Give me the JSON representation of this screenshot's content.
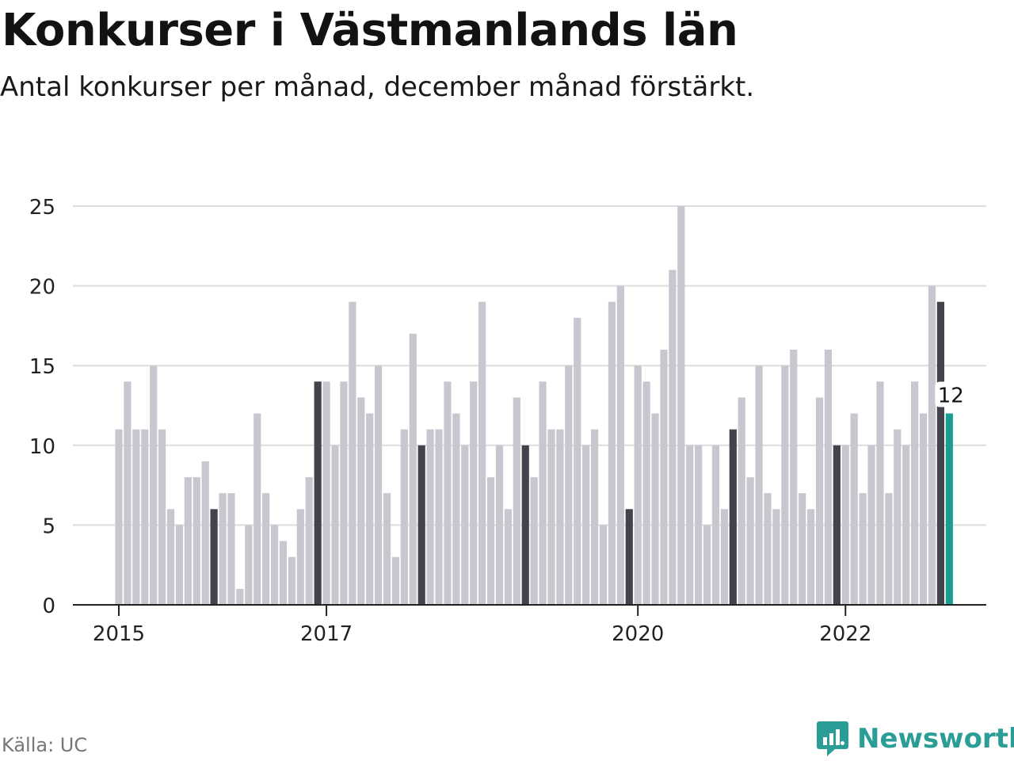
{
  "header": {
    "title": "Konkurser i Västmanlands län",
    "subtitle": "Antal konkurser per månad, december månad förstärkt."
  },
  "footer": {
    "source": "Källa: UC",
    "brand": "Newsworthy"
  },
  "colors": {
    "bar": "#c7c7d0",
    "december": "#43434d",
    "latest": "#1a9e94",
    "grid": "#dddddd",
    "axis": "#222222",
    "brand": "#2a9d96"
  },
  "chart_data": {
    "type": "bar",
    "title": "Konkurser i Västmanlands län",
    "xlabel": "",
    "ylabel": "",
    "ylim": [
      0,
      25
    ],
    "yticks": [
      0,
      5,
      10,
      15,
      20,
      25
    ],
    "grid": true,
    "start": "2015-01",
    "xtick_labels": [
      {
        "label": "2015",
        "index": 0
      },
      {
        "label": "2017",
        "index": 24
      },
      {
        "label": "2020",
        "index": 60
      },
      {
        "label": "2022",
        "index": 84
      }
    ],
    "values": [
      11,
      14,
      11,
      11,
      15,
      11,
      6,
      5,
      8,
      8,
      9,
      6,
      7,
      7,
      1,
      5,
      12,
      7,
      5,
      4,
      3,
      6,
      8,
      14,
      14,
      10,
      14,
      19,
      13,
      12,
      15,
      7,
      3,
      11,
      17,
      10,
      11,
      11,
      14,
      12,
      10,
      14,
      19,
      8,
      10,
      6,
      13,
      10,
      8,
      14,
      11,
      11,
      15,
      18,
      10,
      11,
      5,
      19,
      20,
      6,
      15,
      14,
      12,
      16,
      21,
      25,
      10,
      10,
      5,
      10,
      6,
      11,
      13,
      8,
      15,
      7,
      6,
      15,
      16,
      7,
      6,
      13,
      16,
      10,
      10,
      12,
      7,
      10,
      14,
      7,
      11,
      10,
      14,
      12,
      20,
      19,
      12
    ],
    "highlighted_label": "12"
  }
}
